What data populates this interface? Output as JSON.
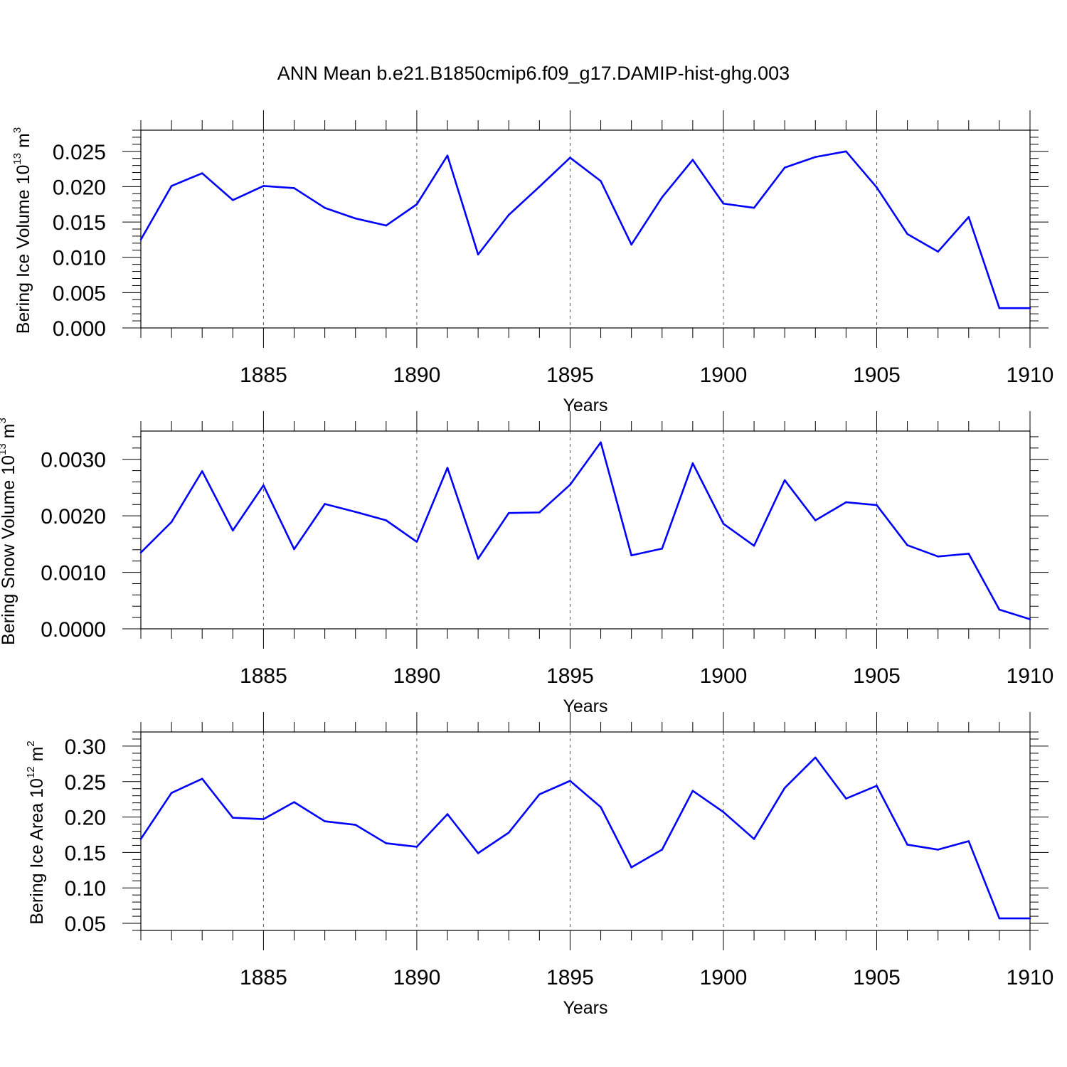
{
  "title": "ANN Mean b.e21.B1850cmip6.f09_g17.DAMIP-hist-ghg.003",
  "colors": {
    "line": "#0000ff",
    "axis": "#000000",
    "grid": "#555555"
  },
  "chart_data": [
    {
      "type": "line",
      "ylabel": "Bering Ice Volume 10",
      "ylabel_exp": "13",
      "ylabel_unit": " m",
      "ylabel_unit_exp": "3",
      "xlabel": "Years",
      "xlim": [
        1881,
        1910
      ],
      "ylim": [
        0,
        0.028
      ],
      "yticks": [
        0.0,
        0.005,
        0.01,
        0.015,
        0.02,
        0.025
      ],
      "ytick_labels": [
        "0.000",
        "0.005",
        "0.010",
        "0.015",
        "0.020",
        "0.025"
      ],
      "xticks": [
        1885,
        1890,
        1895,
        1900,
        1905,
        1910
      ],
      "xtick_labels": [
        "1885",
        "1890",
        "1895",
        "1900",
        "1905",
        "1910"
      ],
      "grid": "vertical dashed at major x ticks",
      "x": [
        1881,
        1882,
        1883,
        1884,
        1885,
        1886,
        1887,
        1888,
        1889,
        1890,
        1891,
        1892,
        1893,
        1894,
        1895,
        1896,
        1897,
        1898,
        1899,
        1900,
        1901,
        1902,
        1903,
        1904,
        1905,
        1906,
        1907,
        1908,
        1909,
        1910
      ],
      "values": [
        0.0125,
        0.0201,
        0.0219,
        0.0181,
        0.0201,
        0.0198,
        0.017,
        0.0155,
        0.0145,
        0.0175,
        0.0244,
        0.0104,
        0.016,
        0.02,
        0.0241,
        0.0208,
        0.0118,
        0.0185,
        0.0238,
        0.0176,
        0.017,
        0.0227,
        0.0242,
        0.025,
        0.0199,
        0.0133,
        0.0108,
        0.0157,
        0.0028,
        0.0028
      ]
    },
    {
      "type": "line",
      "ylabel": "Bering Snow Volume 10",
      "ylabel_exp": "13",
      "ylabel_unit": " m",
      "ylabel_unit_exp": "3",
      "xlabel": "Years",
      "xlim": [
        1881,
        1910
      ],
      "ylim": [
        0,
        0.0035
      ],
      "yticks": [
        0.0,
        0.001,
        0.002,
        0.003
      ],
      "ytick_labels": [
        "0.0000",
        "0.0010",
        "0.0020",
        "0.0030"
      ],
      "xticks": [
        1885,
        1890,
        1895,
        1900,
        1905,
        1910
      ],
      "xtick_labels": [
        "1885",
        "1890",
        "1895",
        "1900",
        "1905",
        "1910"
      ],
      "grid": "vertical dashed at major x ticks",
      "x": [
        1881,
        1882,
        1883,
        1884,
        1885,
        1886,
        1887,
        1888,
        1889,
        1890,
        1891,
        1892,
        1893,
        1894,
        1895,
        1896,
        1897,
        1898,
        1899,
        1900,
        1901,
        1902,
        1903,
        1904,
        1905,
        1906,
        1907,
        1908,
        1909,
        1910
      ],
      "values": [
        0.00135,
        0.00189,
        0.00279,
        0.00174,
        0.00254,
        0.00141,
        0.00221,
        0.00207,
        0.00192,
        0.00154,
        0.00285,
        0.00124,
        0.00205,
        0.00206,
        0.00255,
        0.0033,
        0.0013,
        0.00142,
        0.00293,
        0.00186,
        0.00147,
        0.00263,
        0.00192,
        0.00224,
        0.00219,
        0.00148,
        0.00128,
        0.00133,
        0.00034,
        0.00017
      ]
    },
    {
      "type": "line",
      "ylabel": "Bering Ice Area 10",
      "ylabel_exp": "12",
      "ylabel_unit": " m",
      "ylabel_unit_exp": "2",
      "xlabel": "Years",
      "xlim": [
        1881,
        1910
      ],
      "ylim": [
        0.04,
        0.32
      ],
      "yticks": [
        0.05,
        0.1,
        0.15,
        0.2,
        0.25,
        0.3
      ],
      "ytick_labels": [
        "0.05",
        "0.10",
        "0.15",
        "0.20",
        "0.25",
        "0.30"
      ],
      "xticks": [
        1885,
        1890,
        1895,
        1900,
        1905,
        1910
      ],
      "xtick_labels": [
        "1885",
        "1890",
        "1895",
        "1900",
        "1905",
        "1910"
      ],
      "grid": "vertical dashed at major x ticks",
      "x": [
        1881,
        1882,
        1883,
        1884,
        1885,
        1886,
        1887,
        1888,
        1889,
        1890,
        1891,
        1892,
        1893,
        1894,
        1895,
        1896,
        1897,
        1898,
        1899,
        1900,
        1901,
        1902,
        1903,
        1904,
        1905,
        1906,
        1907,
        1908,
        1909,
        1910
      ],
      "values": [
        0.169,
        0.234,
        0.254,
        0.199,
        0.197,
        0.221,
        0.194,
        0.189,
        0.163,
        0.158,
        0.204,
        0.149,
        0.178,
        0.232,
        0.251,
        0.214,
        0.129,
        0.154,
        0.237,
        0.207,
        0.169,
        0.241,
        0.284,
        0.226,
        0.244,
        0.161,
        0.154,
        0.166,
        0.057,
        0.057
      ]
    }
  ]
}
